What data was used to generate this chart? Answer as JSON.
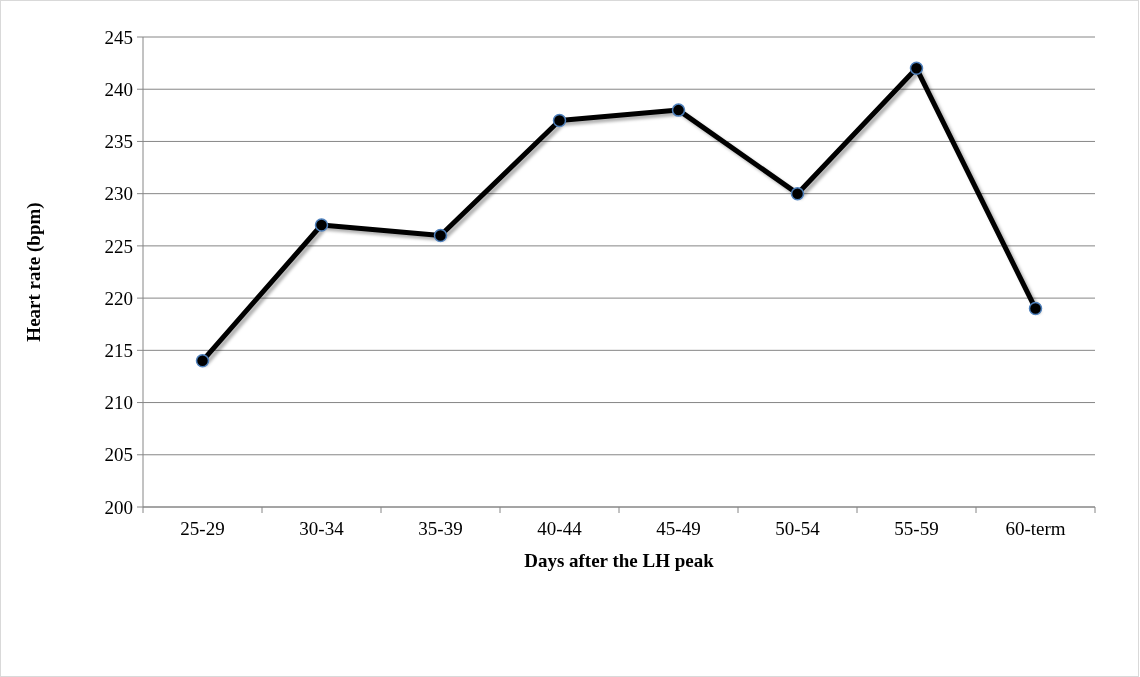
{
  "chart_data": {
    "type": "line",
    "xlabel": "Days after the LH peak",
    "ylabel": "Heart rate (bpm)",
    "categories": [
      "25-29",
      "30-34",
      "35-39",
      "40-44",
      "45-49",
      "50-54",
      "55-59",
      "60-term"
    ],
    "series": [
      {
        "color": "#000000",
        "values": [
          214,
          227,
          226,
          237,
          238,
          230,
          242,
          219
        ]
      }
    ],
    "ylim": [
      200,
      245
    ],
    "yticks": [
      200,
      205,
      210,
      215,
      220,
      225,
      230,
      235,
      240,
      245
    ],
    "grid": "y",
    "marker": "circle",
    "line_style": "solid"
  }
}
